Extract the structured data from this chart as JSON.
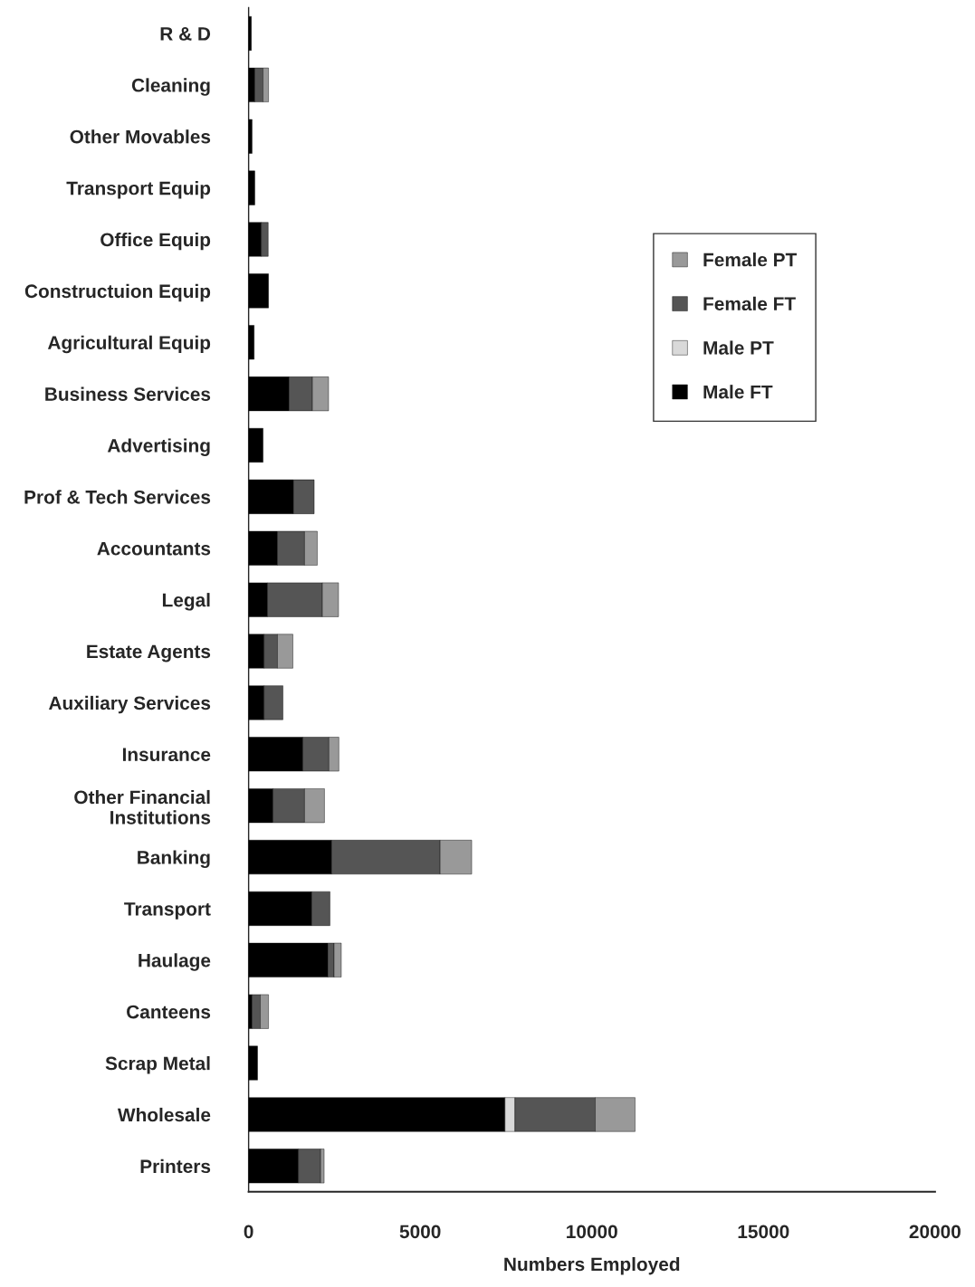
{
  "chart_data": {
    "type": "bar",
    "orientation": "horizontal",
    "stacked": true,
    "xlabel": "Numbers Employed",
    "categories": [
      "R & D",
      "Cleaning",
      "Other Movables",
      "Transport Equip",
      "Office Equip",
      "Constructuion Equip",
      "Agricultural Equip",
      "Business Services",
      "Advertising",
      "Prof & Tech Services",
      "Accountants",
      "Legal",
      "Estate Agents",
      "Auxiliary Services",
      "Insurance",
      "Other Financial\nInstitutions",
      "Banking",
      "Transport",
      "Haulage",
      "Canteens",
      "Scrap Metal",
      "Wholesale",
      "Printers"
    ],
    "series": [
      {
        "name": "Male FT",
        "color": "#000000",
        "values": [
          80,
          180,
          100,
          180,
          370,
          580,
          160,
          1180,
          420,
          1310,
          840,
          550,
          450,
          450,
          1580,
          710,
          2420,
          1840,
          2310,
          100,
          260,
          7470,
          1450
        ]
      },
      {
        "name": "Male PT",
        "color": "#d9d9d9",
        "values": [
          null,
          null,
          null,
          null,
          null,
          null,
          null,
          null,
          null,
          null,
          null,
          null,
          null,
          null,
          null,
          null,
          null,
          null,
          null,
          null,
          null,
          290,
          null
        ]
      },
      {
        "name": "Female FT",
        "color": "#555555",
        "values": [
          null,
          240,
          null,
          null,
          200,
          null,
          null,
          680,
          null,
          600,
          790,
          1600,
          390,
          550,
          760,
          920,
          3160,
          530,
          180,
          240,
          null,
          2340,
          650
        ]
      },
      {
        "name": "Female PT",
        "color": "#999999",
        "values": [
          null,
          160,
          null,
          null,
          null,
          null,
          null,
          470,
          null,
          null,
          370,
          470,
          450,
          null,
          290,
          580,
          920,
          null,
          210,
          240,
          null,
          1160,
          100
        ]
      }
    ],
    "xlim": [
      0,
      20000
    ],
    "xticks": [
      0,
      5000,
      10000,
      15000,
      20000
    ],
    "legend": "right",
    "grid": false
  }
}
